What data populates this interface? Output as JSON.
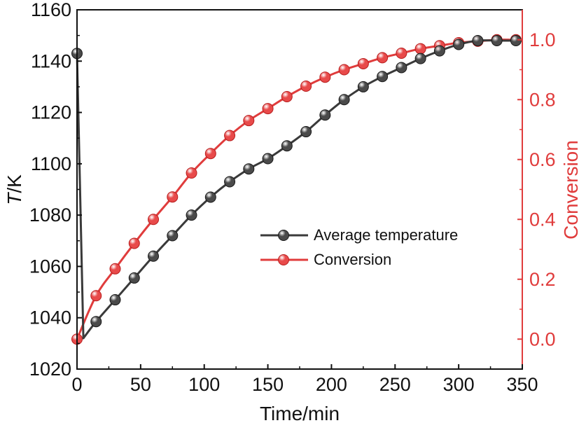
{
  "chart_data": {
    "type": "line",
    "title": "",
    "xlabel": "Time/min",
    "ylabel_left": {
      "italic": "T",
      "rest": "/K"
    },
    "ylabel_right": "Conversion",
    "xlim": [
      0,
      350
    ],
    "ylim_left": [
      1020,
      1160
    ],
    "ylim_right": [
      -0.1,
      1.1
    ],
    "x_ticks": [
      0,
      50,
      100,
      150,
      200,
      250,
      300,
      350
    ],
    "x_tick_labels": [
      "0",
      "50",
      "100",
      "150",
      "200",
      "250",
      "300",
      "350"
    ],
    "y_left_ticks": [
      1020,
      1040,
      1060,
      1080,
      1100,
      1120,
      1140,
      1160
    ],
    "y_left_tick_labels": [
      "1020",
      "1040",
      "1060",
      "1080",
      "1100",
      "1120",
      "1140",
      "1160"
    ],
    "y_right_ticks": [
      0.0,
      0.2,
      0.4,
      0.6,
      0.8,
      1.0
    ],
    "y_right_tick_labels": [
      "0.0",
      "0.2",
      "0.4",
      "0.6",
      "0.8",
      "1.0"
    ],
    "grid": false,
    "legend_position": "center-right",
    "series": [
      {
        "name": "Average temperature",
        "axis": "left",
        "color": "#3a3a3a",
        "marker_color": "#4a4a4a",
        "x": [
          0,
          5,
          15,
          30,
          45,
          60,
          75,
          90,
          105,
          120,
          135,
          150,
          165,
          180,
          195,
          210,
          225,
          240,
          255,
          270,
          285,
          300,
          315,
          330,
          345
        ],
        "y": [
          1143,
          1032,
          1038.5,
          1047,
          1055.5,
          1064,
          1072,
          1080,
          1087,
          1093,
          1098,
          1102,
          1107,
          1112.5,
          1119,
          1125,
          1130,
          1134,
          1137.5,
          1141,
          1144,
          1146.5,
          1148,
          1148,
          1148
        ]
      },
      {
        "name": "Conversion",
        "axis": "right",
        "color": "#e03c3c",
        "marker_color": "#e84a4a",
        "x": [
          0,
          15,
          30,
          45,
          60,
          75,
          90,
          105,
          120,
          135,
          150,
          165,
          180,
          195,
          210,
          225,
          240,
          255,
          270,
          285,
          300,
          315,
          330,
          345
        ],
        "y": [
          0.0,
          0.145,
          0.235,
          0.32,
          0.4,
          0.475,
          0.555,
          0.62,
          0.68,
          0.73,
          0.77,
          0.81,
          0.845,
          0.875,
          0.9,
          0.92,
          0.94,
          0.955,
          0.97,
          0.98,
          0.99,
          0.995,
          1.0,
          1.0
        ]
      }
    ]
  }
}
